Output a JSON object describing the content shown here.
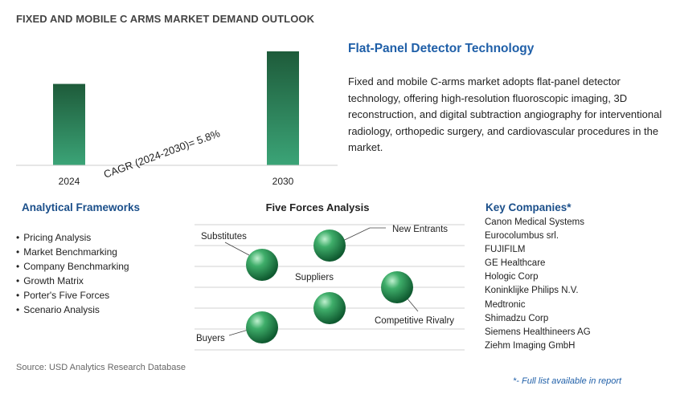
{
  "title": "FIXED AND MOBILE C ARMS MARKET DEMAND OUTLOOK",
  "chart_data": {
    "type": "bar",
    "categories": [
      "2024",
      "2030"
    ],
    "values": [
      1.0,
      1.4
    ],
    "annotation": {
      "label": "CAGR (2024-2030)=",
      "value": "5.8%"
    }
  },
  "feature": {
    "title": "Flat-Panel Detector Technology",
    "text": "Fixed and mobile C-arms market adopts flat-panel detector technology, offering high-resolution fluoroscopic imaging, 3D reconstruction, and digital subtraction angiography for interventional radiology, orthopedic surgery, and cardiovascular procedures in the market."
  },
  "analytical_frameworks": {
    "title": "Analytical Frameworks",
    "items": [
      "Pricing Analysis",
      "Market Benchmarking",
      "Company Benchmarking",
      "Growth Matrix",
      "Porter's Five Forces",
      "Scenario Analysis"
    ]
  },
  "five_forces": {
    "title": "Five Forces Analysis",
    "labels": {
      "substitutes": "Substitutes",
      "new_entrants": "New Entrants",
      "suppliers": "Suppliers",
      "competitive_rivalry": "Competitive Rivalry",
      "buyers": "Buyers"
    }
  },
  "key_companies": {
    "title": "Key Companies*",
    "items": [
      "Canon Medical Systems",
      "Eurocolumbus srl.",
      "FUJIFILM",
      "GE Healthcare",
      "Hologic Corp",
      "Koninklijke Philips N.V.",
      "Medtronic",
      "Shimadzu Corp",
      "Siemens Healthineers AG",
      "Ziehm Imaging GmbH"
    ]
  },
  "source": "Source: USD Analytics Research Database",
  "footnote": "*- Full list available in report",
  "colors": {
    "bar_top": "#1e5b3a",
    "bar_bottom": "#3aa374",
    "heading_blue": "#1b4f8a",
    "accent_blue": "#1f5fa8"
  }
}
